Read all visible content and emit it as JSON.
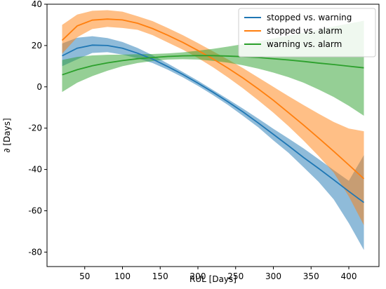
{
  "chart_data": {
    "type": "line",
    "xlabel": "RUL [Days]",
    "ylabel": "∂ [Days]",
    "xlim": [
      0,
      440
    ],
    "ylim": [
      -87,
      40
    ],
    "xticks": [
      50,
      100,
      150,
      200,
      250,
      300,
      350,
      400
    ],
    "yticks": [
      -80,
      -60,
      -40,
      -20,
      0,
      20,
      40
    ],
    "legend_position": "top-right",
    "grid": false,
    "x": [
      20,
      40,
      60,
      80,
      100,
      120,
      140,
      160,
      180,
      200,
      220,
      240,
      260,
      280,
      300,
      320,
      340,
      360,
      380,
      400,
      420
    ],
    "series": [
      {
        "name": "stopped vs. warning",
        "color": "#1f77b4",
        "values": [
          15,
          18.7,
          20.2,
          20,
          18.7,
          16.3,
          13.4,
          9.8,
          6,
          1.8,
          -2.6,
          -7.3,
          -12.2,
          -17.5,
          -23,
          -28.5,
          -34.2,
          -39.5,
          -45,
          -50.6,
          -56
        ],
        "upper": [
          21,
          23.8,
          24.5,
          23.6,
          21.7,
          18.8,
          15.3,
          11.3,
          7.2,
          3,
          -1.5,
          -6,
          -10.6,
          -15.4,
          -20.3,
          -25,
          -29.8,
          -35,
          -40.3,
          -45.5,
          -33
        ],
        "lower": [
          10,
          13.3,
          16.4,
          16.8,
          15.6,
          13.8,
          11.5,
          8.3,
          4.6,
          0.5,
          -4,
          -8.8,
          -14.1,
          -19.6,
          -25.9,
          -31.9,
          -38.9,
          -46,
          -54.5,
          -66,
          -79
        ]
      },
      {
        "name": "stopped vs. alarm",
        "color": "#ff7f0e",
        "values": [
          22.5,
          29.5,
          32.3,
          32.8,
          32.4,
          30.8,
          28.2,
          25,
          21.5,
          17.6,
          13.5,
          9,
          4.2,
          -1,
          -6.5,
          -12.5,
          -18.5,
          -24.8,
          -31.2,
          -37.8,
          -44.5
        ],
        "upper": [
          30,
          35,
          36.8,
          37.1,
          36.4,
          34.2,
          31.8,
          28.5,
          25,
          21.2,
          17.2,
          13.2,
          9,
          4.5,
          0,
          -4.5,
          -8.8,
          -13,
          -17,
          -20.2,
          -21.5
        ],
        "lower": [
          16,
          24,
          28,
          29,
          28.5,
          27.6,
          25,
          21.5,
          18,
          14,
          9.5,
          4.5,
          -0.8,
          -6.5,
          -12.5,
          -19,
          -26,
          -33.5,
          -41.5,
          -53,
          -67
        ]
      },
      {
        "name": "warning vs. alarm",
        "color": "#2ca02c",
        "values": [
          5.8,
          8.3,
          10.2,
          11.6,
          12.7,
          13.6,
          14.2,
          14.7,
          15,
          15.1,
          15.1,
          14.9,
          14.6,
          14.2,
          13.6,
          13,
          12.3,
          11.5,
          10.8,
          10,
          9.2
        ],
        "upper": [
          13,
          14.5,
          15.2,
          15.5,
          15.6,
          15.8,
          15.9,
          16.2,
          16.7,
          17.5,
          18.4,
          19.5,
          20.7,
          22,
          23.4,
          24.8,
          26.2,
          27.7,
          29.2,
          30.6,
          32
        ],
        "lower": [
          -2.5,
          2,
          5.2,
          7.8,
          10,
          11.5,
          12.5,
          13.2,
          13.4,
          13.2,
          12.6,
          11.7,
          10.4,
          8.8,
          6.9,
          4.7,
          2,
          -1.3,
          -4.9,
          -9.2,
          -14
        ]
      }
    ]
  }
}
